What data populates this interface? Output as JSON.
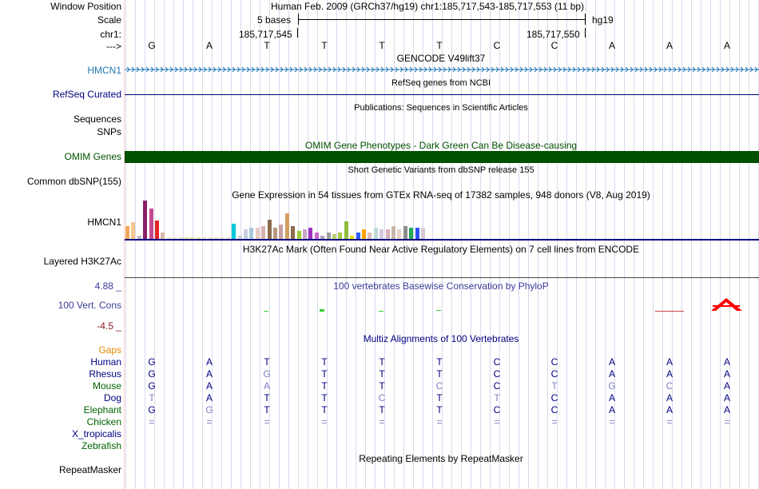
{
  "header": {
    "window_position_label": "Window Position",
    "window_position_value": "Human Feb. 2009 (GRCh37/hg19)   chr1:185,717,543-185,717,553 (11 bp)",
    "scale_label": "Scale",
    "scale_value": "5 bases",
    "assembly": "hg19",
    "chrom_label": "chr1:",
    "coord_left": "185,717,545",
    "coord_right": "185,717,550",
    "strand_label": "--->"
  },
  "sequence": [
    "G",
    "A",
    "T",
    "T",
    "T",
    "T",
    "C",
    "C",
    "A",
    "A",
    "A"
  ],
  "tracks": {
    "gencode": {
      "title": "GENCODE V49lift37",
      "label": "HMCN1",
      "color": "#1f77b4"
    },
    "refseq": {
      "title": "RefSeq genes from NCBI",
      "label": "RefSeq Curated",
      "color": "#000080"
    },
    "publications": {
      "title": "Publications: Sequences in Scientific Articles",
      "label1": "Sequences",
      "label2": "SNPs"
    },
    "omim": {
      "title": "OMIM Gene Phenotypes - Dark Green Can Be Disease-causing",
      "label": "OMIM Genes",
      "color": "#005000"
    },
    "dbsnp": {
      "title": "Short Genetic Variants from dbSNP release 155",
      "label": "Common dbSNP(155)"
    },
    "gtex": {
      "title": "Gene Expression in 54 tissues from GTEx RNA-seq of 17382 samples, 948 donors (V8, Aug 2019)",
      "label": "HMCN1"
    },
    "h3k27ac": {
      "title": "H3K27Ac Mark (Often Found Near Active Regulatory Elements) on 7 cell lines from ENCODE",
      "label": "Layered H3K27Ac"
    },
    "phylop": {
      "title": "100 vertebrates Basewise Conservation by PhyloP",
      "label": "100 Vert. Cons",
      "max": "4.88 _",
      "min": "-4.5 _",
      "color": "#3a3a9a",
      "min_color": "#8b1a1a"
    },
    "multiz": {
      "title": "Multiz Alignments of 100 Vertebrates",
      "gaps_label": "Gaps",
      "species": [
        {
          "name": "Human",
          "color": "#000080",
          "bases": [
            "G",
            "A",
            "T",
            "T",
            "T",
            "T",
            "C",
            "C",
            "A",
            "A",
            "A"
          ],
          "faded": []
        },
        {
          "name": "Rhesus",
          "color": "#000080",
          "bases": [
            "G",
            "A",
            "G",
            "T",
            "T",
            "T",
            "C",
            "C",
            "A",
            "A",
            "A"
          ],
          "faded": [
            2
          ]
        },
        {
          "name": "Mouse",
          "color": "#006400",
          "bases": [
            "G",
            "A",
            "A",
            "T",
            "T",
            "C",
            "C",
            "T",
            "G",
            "C",
            "A"
          ],
          "faded": [
            2,
            5,
            7,
            8,
            9
          ]
        },
        {
          "name": "Dog",
          "color": "#000080",
          "bases": [
            "T",
            "A",
            "T",
            "T",
            "C",
            "T",
            "T",
            "C",
            "A",
            "A",
            "A"
          ],
          "faded": [
            0,
            4,
            6
          ]
        },
        {
          "name": "Elephant",
          "color": "#006400",
          "bases": [
            "G",
            "G",
            "T",
            "T",
            "T",
            "T",
            "C",
            "C",
            "A",
            "A",
            "A"
          ],
          "faded": [
            1
          ]
        },
        {
          "name": "Chicken",
          "color": "#006400",
          "bases": [
            "=",
            "=",
            "=",
            "=",
            "=",
            "=",
            "=",
            "=",
            "=",
            "=",
            "="
          ],
          "faded": [
            0,
            1,
            2,
            3,
            4,
            5,
            6,
            7,
            8,
            9,
            10
          ]
        },
        {
          "name": "X_tropicalis",
          "color": "#000080",
          "bases": [],
          "faded": []
        },
        {
          "name": "Zebrafish",
          "color": "#006400",
          "bases": [],
          "faded": []
        }
      ]
    },
    "repeatmasker": {
      "title": "Repeating Elements by RepeatMasker",
      "label": "RepeatMasker"
    }
  }
}
